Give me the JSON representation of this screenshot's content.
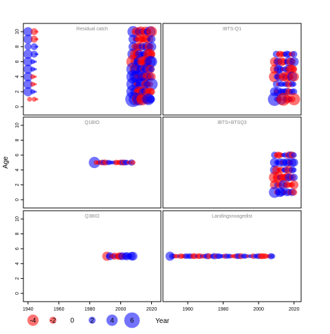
{
  "chart_data": {
    "type": "scatter",
    "subtype": "bubble residual plot",
    "ylabel": "Age",
    "xlabel": "Year",
    "ylim": [
      0,
      10
    ],
    "yticks": [
      0,
      2,
      4,
      6,
      8,
      10
    ],
    "xticks": [
      1940,
      1960,
      1980,
      2000,
      2020
    ],
    "left_xlim": [
      1937,
      2026
    ],
    "right_xlim": [
      1946,
      2024
    ],
    "colors": {
      "positive": "#0000ff",
      "negative": "#ff0000"
    },
    "legend": {
      "values": [
        -4,
        -2,
        0,
        2,
        4,
        6
      ],
      "labels": [
        "-4",
        "-2",
        "0",
        "2",
        "4",
        "6"
      ]
    },
    "panels": [
      {
        "title": "Residual catch",
        "column": "left",
        "row": 0,
        "rows": [
          {
            "age": 10,
            "years": [
              1940,
              1944
            ],
            "sizes": [
              3,
              -2
            ],
            "year_start": 2008,
            "year_end": 2020,
            "size": 4
          },
          {
            "age": 9,
            "years": [
              1940,
              1944
            ],
            "sizes": [
              3,
              -2
            ],
            "year_start": 2008,
            "year_end": 2020,
            "size": 3
          },
          {
            "age": 8,
            "years": [
              1940,
              1944
            ],
            "sizes": [
              2,
              2
            ],
            "year_start": 2008,
            "year_end": 2020,
            "size": 3
          },
          {
            "age": 7,
            "years": [
              1940,
              1944
            ],
            "sizes": [
              3,
              2
            ],
            "year_start": 2008,
            "year_end": 2020,
            "size": 4
          },
          {
            "age": 6,
            "years": [
              1940,
              1943
            ],
            "sizes": [
              3,
              1
            ],
            "year_start": 2008,
            "year_end": 2020,
            "size": -5
          },
          {
            "age": 5,
            "years": [
              1940,
              1943
            ],
            "sizes": [
              3,
              1
            ],
            "year_start": 2008,
            "year_end": 2020,
            "size": 5
          },
          {
            "age": 4,
            "years": [
              1940,
              1943
            ],
            "sizes": [
              3,
              -1
            ],
            "year_start": 2008,
            "year_end": 2020,
            "size": 5
          },
          {
            "age": 3,
            "years": [
              1940,
              1943
            ],
            "sizes": [
              3,
              -1
            ],
            "year_start": 2008,
            "year_end": 2020,
            "size": 5
          },
          {
            "age": 2,
            "years": [
              1940,
              1943
            ],
            "sizes": [
              3,
              1
            ],
            "year_start": 2008,
            "year_end": 2020,
            "size": 5
          },
          {
            "age": 1,
            "years": [
              1941,
              1944
            ],
            "sizes": [
              -1,
              -1
            ],
            "year_start": 2008,
            "year_end": 2020,
            "size": 6
          }
        ]
      },
      {
        "title": "IBTS-Q1",
        "column": "right",
        "row": 0,
        "rows": [
          {
            "age": 7,
            "year_start": 2010,
            "year_end": 2020,
            "size": 2
          },
          {
            "age": 6,
            "year_start": 2009,
            "year_end": 2020,
            "size": -3
          },
          {
            "age": 5,
            "year_start": 2009,
            "year_end": 2020,
            "size": -3
          },
          {
            "age": 4,
            "year_start": 2009,
            "year_end": 2020,
            "size": -4
          },
          {
            "age": 3,
            "year_start": 2010,
            "year_end": 2020,
            "size": 2
          },
          {
            "age": 2,
            "year_start": 2009,
            "year_end": 2020,
            "size": 3
          },
          {
            "age": 1,
            "year_start": 2009,
            "year_end": 2020,
            "size": 5
          }
        ]
      },
      {
        "title": "Q1BIO",
        "column": "left",
        "row": 1,
        "rows": [
          {
            "age": 5,
            "year_start": 1983,
            "year_end": 2008,
            "size": 4
          }
        ]
      },
      {
        "title": "IBTS+BTSQ3",
        "column": "right",
        "row": 1,
        "rows": [
          {
            "age": 6,
            "year_start": 2009,
            "year_end": 2020,
            "size": 2
          },
          {
            "age": 5,
            "year_start": 2009,
            "year_end": 2020,
            "size": 3
          },
          {
            "age": 4,
            "year_start": 2009,
            "year_end": 2020,
            "size": 3
          },
          {
            "age": 3,
            "year_start": 2009,
            "year_end": 2020,
            "size": -4
          },
          {
            "age": 2,
            "year_start": 2009,
            "year_end": 2020,
            "size": -3
          },
          {
            "age": 1,
            "year_start": 2009,
            "year_end": 2020,
            "size": 4
          }
        ]
      },
      {
        "title": "Q3BIO",
        "column": "left",
        "row": 2,
        "rows": [
          {
            "age": 5,
            "year_start": 1991,
            "year_end": 2008,
            "size": -3
          }
        ]
      },
      {
        "title": "Landingsnoagedist",
        "column": "right",
        "row": 2,
        "rows": [
          {
            "age": 5,
            "year_start": 1950,
            "year_end": 2008,
            "size": 3
          }
        ]
      }
    ]
  }
}
